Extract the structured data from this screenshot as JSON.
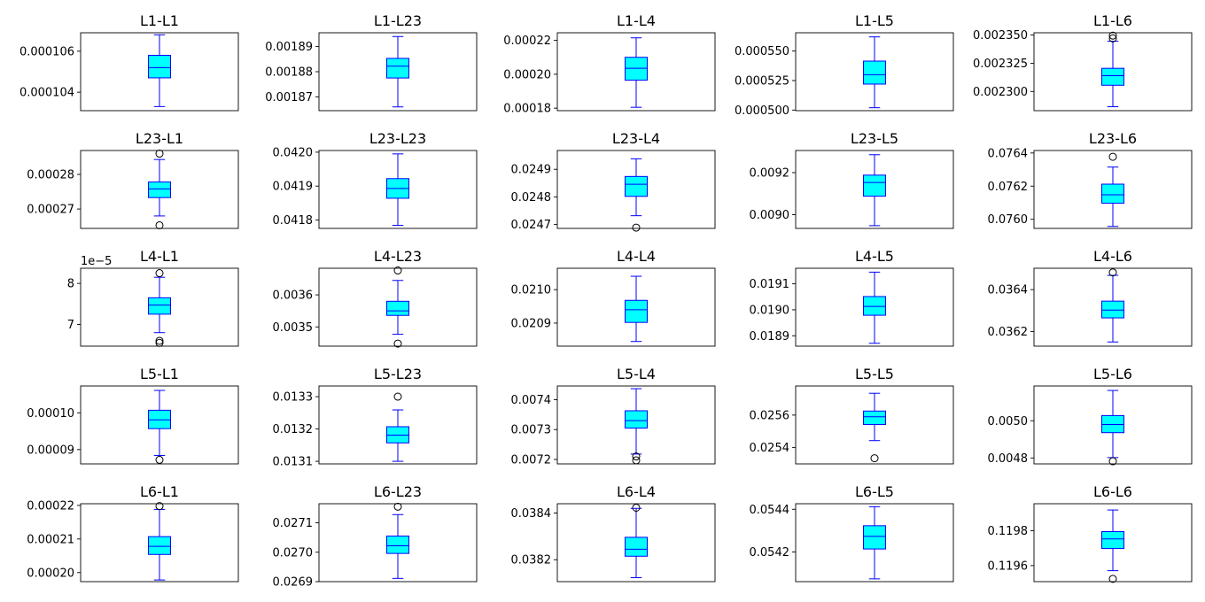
{
  "chart_data": {
    "type": "box",
    "layout": {
      "rows": 5,
      "cols": 5
    },
    "box_style": {
      "face": "#00ffff",
      "edge": "#0000ff",
      "whisker": "#0000ff",
      "median": "#0000ff",
      "outlier": "#000000"
    },
    "subplots": [
      {
        "title": "L1-L1",
        "ylim": [
          0.0001031,
          0.0001069
        ],
        "yticks": [
          "0.000104",
          "0.000106"
        ],
        "ytick_values": [
          0.000104,
          0.000106
        ],
        "stats": {
          "whislo": 0.0001033,
          "q1": 0.0001047,
          "med": 0.0001052,
          "q3": 0.0001058,
          "whishi": 0.0001068
        },
        "fliers": []
      },
      {
        "title": "L1-L23",
        "ylim": [
          0.0018645,
          0.0018955
        ],
        "yticks": [
          "0.00187",
          "0.00188",
          "0.00189"
        ],
        "ytick_values": [
          0.00187,
          0.00188,
          0.00189
        ],
        "stats": {
          "whislo": 0.001866,
          "q1": 0.0018775,
          "med": 0.0018822,
          "q3": 0.0018853,
          "whishi": 0.001894
        },
        "fliers": []
      },
      {
        "title": "L1-L4",
        "ylim": [
          0.0001785,
          0.0002245
        ],
        "yticks": [
          "0.00018",
          "0.00020",
          "0.00022"
        ],
        "ytick_values": [
          0.00018,
          0.0002,
          0.00022
        ],
        "stats": {
          "whislo": 0.0001805,
          "q1": 0.0001965,
          "med": 0.0002035,
          "q3": 0.00021,
          "whishi": 0.0002215
        },
        "fliers": []
      },
      {
        "title": "L1-L5",
        "ylim": [
          0.0004995,
          0.0005655
        ],
        "yticks": [
          "0.000500",
          "0.000525",
          "0.000550"
        ],
        "ytick_values": [
          0.0005,
          0.000525,
          0.00055
        ],
        "stats": {
          "whislo": 0.000502,
          "q1": 0.000522,
          "med": 0.00053,
          "q3": 0.0005415,
          "whishi": 0.000562
        },
        "fliers": []
      },
      {
        "title": "L1-L6",
        "ylim": [
          0.002283,
          0.002352
        ],
        "yticks": [
          "0.002300",
          "0.002325",
          "0.002350"
        ],
        "ytick_values": [
          0.0023,
          0.002325,
          0.00235
        ],
        "stats": {
          "whislo": 0.0022865,
          "q1": 0.0023055,
          "med": 0.002314,
          "q3": 0.0023205,
          "whishi": 0.0023445
        },
        "fliers": [
          0.0023495,
          0.002347
        ]
      },
      {
        "title": "L23-L1",
        "ylim": [
          0.0002644,
          0.0002869
        ],
        "yticks": [
          "0.00027",
          "0.00028"
        ],
        "ytick_values": [
          0.00027,
          0.00028
        ],
        "stats": {
          "whislo": 0.000268,
          "q1": 0.0002733,
          "med": 0.0002758,
          "q3": 0.0002778,
          "whishi": 0.0002843
        },
        "fliers": [
          0.000286,
          0.0002653
        ]
      },
      {
        "title": "L23-L23",
        "ylim": [
          0.041775,
          0.042005
        ],
        "yticks": [
          "0.0418",
          "0.0419",
          "0.0420"
        ],
        "ytick_values": [
          0.0418,
          0.0419,
          0.042
        ],
        "stats": {
          "whislo": 0.041784,
          "q1": 0.041864,
          "med": 0.041893,
          "q3": 0.041922,
          "whishi": 0.041995
        },
        "fliers": []
      },
      {
        "title": "L23-L4",
        "ylim": [
          0.024686,
          0.024968
        ],
        "yticks": [
          "0.0247",
          "0.0248",
          "0.0249"
        ],
        "ytick_values": [
          0.0247,
          0.0248,
          0.0249
        ],
        "stats": {
          "whislo": 0.024732,
          "q1": 0.024802,
          "med": 0.024846,
          "q3": 0.024874,
          "whishi": 0.024938
        },
        "fliers": [
          0.024689
        ]
      },
      {
        "title": "L23-L5",
        "ylim": [
          0.008935,
          0.009305
        ],
        "yticks": [
          "0.0090",
          "0.0092"
        ],
        "ytick_values": [
          0.009,
          0.0092
        ],
        "stats": {
          "whislo": 0.008948,
          "q1": 0.009088,
          "med": 0.009153,
          "q3": 0.009188,
          "whishi": 0.009285
        },
        "fliers": []
      },
      {
        "title": "L23-L6",
        "ylim": [
          0.075945,
          0.076415
        ],
        "yticks": [
          "0.0760",
          "0.0762",
          "0.0764"
        ],
        "ytick_values": [
          0.076,
          0.0762,
          0.0764
        ],
        "stats": {
          "whislo": 0.075957,
          "q1": 0.076097,
          "med": 0.076148,
          "q3": 0.076212,
          "whishi": 0.076315
        },
        "fliers": [
          0.076377
        ]
      },
      {
        "title": "L4-L1",
        "ylim": [
          6.47e-05,
          8.37e-05
        ],
        "yticks": [
          "7",
          "8"
        ],
        "ytick_values": [
          7e-05,
          8e-05
        ],
        "offset_text": "1e−5",
        "stats": {
          "whislo": 6.8e-05,
          "q1": 7.25e-05,
          "med": 7.47e-05,
          "q3": 7.65e-05,
          "whishi": 8.15e-05
        },
        "fliers": [
          8.25e-05,
          6.6e-05,
          6.55e-05
        ]
      },
      {
        "title": "L4-L23",
        "ylim": [
          0.00344,
          0.003683
        ],
        "yticks": [
          "0.0035",
          "0.0036"
        ],
        "ytick_values": [
          0.0035,
          0.0036
        ],
        "stats": {
          "whislo": 0.003477,
          "q1": 0.003536,
          "med": 0.00355,
          "q3": 0.00358,
          "whishi": 0.003645
        },
        "fliers": [
          0.003676,
          0.003448
        ]
      },
      {
        "title": "L4-L4",
        "ylim": [
          0.020831,
          0.021064
        ],
        "yticks": [
          "0.0209",
          "0.0210"
        ],
        "ytick_values": [
          0.0209,
          0.021
        ],
        "stats": {
          "whislo": 0.020845,
          "q1": 0.020902,
          "med": 0.02094,
          "q3": 0.020968,
          "whishi": 0.02104
        },
        "fliers": []
      },
      {
        "title": "L4-L5",
        "ylim": [
          0.01886,
          0.01916
        ],
        "yticks": [
          "0.0189",
          "0.0190",
          "0.0191"
        ],
        "ytick_values": [
          0.0189,
          0.019,
          0.0191
        ],
        "stats": {
          "whislo": 0.018871,
          "q1": 0.018979,
          "med": 0.019013,
          "q3": 0.019051,
          "whishi": 0.019145
        },
        "fliers": []
      },
      {
        "title": "L4-L6",
        "ylim": [
          0.03613,
          0.036502
        ],
        "yticks": [
          "0.0362",
          "0.0364"
        ],
        "ytick_values": [
          0.0362,
          0.0364
        ],
        "stats": {
          "whislo": 0.03615,
          "q1": 0.036265,
          "med": 0.036302,
          "q3": 0.036345,
          "whishi": 0.036468
        },
        "fliers": [
          0.036482
        ]
      },
      {
        "title": "L5-L1",
        "ylim": [
          8.61e-05,
          0.0001073
        ],
        "yticks": [
          "0.00009",
          "0.00010"
        ],
        "ytick_values": [
          9e-05,
          0.0001
        ],
        "stats": {
          "whislo": 8.84e-05,
          "q1": 9.57e-05,
          "med": 9.81e-05,
          "q3": 0.0001007,
          "whishi": 0.0001061
        },
        "fliers": [
          8.72e-05
        ]
      },
      {
        "title": "L5-L23",
        "ylim": [
          0.013092,
          0.013333
        ],
        "yticks": [
          "0.0131",
          "0.0132",
          "0.0133"
        ],
        "ytick_values": [
          0.0131,
          0.0132,
          0.0133
        ],
        "stats": {
          "whislo": 0.0131,
          "q1": 0.013157,
          "med": 0.013181,
          "q3": 0.013207,
          "whishi": 0.013259
        },
        "fliers": [
          0.0133
        ]
      },
      {
        "title": "L5-L4",
        "ylim": [
          0.007185,
          0.007446
        ],
        "yticks": [
          "0.0072",
          "0.0073",
          "0.0074"
        ],
        "ytick_values": [
          0.0072,
          0.0073,
          0.0074
        ],
        "stats": {
          "whislo": 0.007218,
          "q1": 0.007305,
          "med": 0.00733,
          "q3": 0.007363,
          "whishi": 0.007437
        },
        "fliers": [
          0.00721,
          0.007197
        ]
      },
      {
        "title": "L5-L5",
        "ylim": [
          0.025298,
          0.02578
        ],
        "yticks": [
          "0.0254",
          "0.0256"
        ],
        "ytick_values": [
          0.0254,
          0.0256
        ],
        "stats": {
          "whislo": 0.025442,
          "q1": 0.025542,
          "med": 0.02559,
          "q3": 0.025625,
          "whishi": 0.025735
        },
        "fliers": [
          0.025333
        ]
      },
      {
        "title": "L5-L6",
        "ylim": [
          0.004768,
          0.005187
        ],
        "yticks": [
          "0.0048",
          "0.0050"
        ],
        "ytick_values": [
          0.0048,
          0.005
        ],
        "stats": {
          "whislo": 0.004802,
          "q1": 0.004936,
          "med": 0.00498,
          "q3": 0.005028,
          "whishi": 0.005163
        },
        "fliers": [
          0.004782
        ]
      },
      {
        "title": "L6-L1",
        "ylim": [
          0.0001973,
          0.0002205
        ],
        "yticks": [
          "0.00020",
          "0.00021",
          "0.00022"
        ],
        "ytick_values": [
          0.0002,
          0.00021,
          0.00022
        ],
        "stats": {
          "whislo": 0.0001978,
          "q1": 0.0002054,
          "med": 0.0002078,
          "q3": 0.0002107,
          "whishi": 0.0002188
        },
        "fliers": [
          0.0002198
        ]
      },
      {
        "title": "L6-L23",
        "ylim": [
          0.0269,
          0.027165
        ],
        "yticks": [
          "0.0269",
          "0.0270",
          "0.0271"
        ],
        "ytick_values": [
          0.0269,
          0.027,
          0.0271
        ],
        "stats": {
          "whislo": 0.026911,
          "q1": 0.026996,
          "med": 0.027022,
          "q3": 0.027055,
          "whishi": 0.027128
        },
        "fliers": [
          0.027155
        ]
      },
      {
        "title": "L6-L4",
        "ylim": [
          0.038106,
          0.03844
        ],
        "yticks": [
          "0.0382",
          "0.0384"
        ],
        "ytick_values": [
          0.0382,
          0.0384
        ],
        "stats": {
          "whislo": 0.038123,
          "q1": 0.038215,
          "med": 0.038245,
          "q3": 0.038296,
          "whishi": 0.03842
        },
        "fliers": [
          0.038423
        ]
      },
      {
        "title": "L6-L5",
        "ylim": [
          0.054061,
          0.054426
        ],
        "yticks": [
          "0.0542",
          "0.0544"
        ],
        "ytick_values": [
          0.0542,
          0.0544
        ],
        "stats": {
          "whislo": 0.054074,
          "q1": 0.054214,
          "med": 0.054273,
          "q3": 0.054323,
          "whishi": 0.054412
        },
        "fliers": []
      },
      {
        "title": "L6-L6",
        "ylim": [
          0.119508,
          0.119955
        ],
        "yticks": [
          "0.1196",
          "0.1198"
        ],
        "ytick_values": [
          0.1196,
          0.1198
        ],
        "stats": {
          "whislo": 0.119571,
          "q1": 0.119698,
          "med": 0.119753,
          "q3": 0.119795,
          "whishi": 0.119919
        },
        "fliers": [
          0.119524
        ]
      }
    ]
  }
}
